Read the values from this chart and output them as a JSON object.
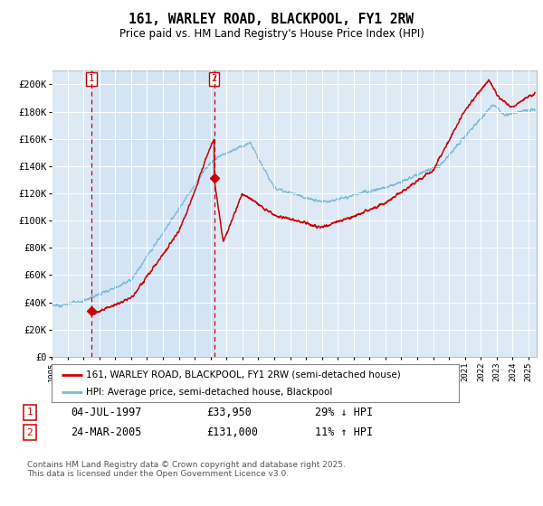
{
  "title": "161, WARLEY ROAD, BLACKPOOL, FY1 2RW",
  "subtitle": "Price paid vs. HM Land Registry's House Price Index (HPI)",
  "ylim": [
    0,
    210000
  ],
  "xlim_start": 1995.0,
  "xlim_end": 2025.5,
  "yticks": [
    0,
    20000,
    40000,
    60000,
    80000,
    100000,
    120000,
    140000,
    160000,
    180000,
    200000
  ],
  "ytick_labels": [
    "£0",
    "£20K",
    "£40K",
    "£60K",
    "£80K",
    "£100K",
    "£120K",
    "£140K",
    "£160K",
    "£180K",
    "£200K"
  ],
  "xtick_years": [
    1995,
    1996,
    1997,
    1998,
    1999,
    2000,
    2001,
    2002,
    2003,
    2004,
    2005,
    2006,
    2007,
    2008,
    2009,
    2010,
    2011,
    2012,
    2013,
    2014,
    2015,
    2016,
    2017,
    2018,
    2019,
    2020,
    2021,
    2022,
    2023,
    2024,
    2025
  ],
  "hpi_color": "#7ab8d9",
  "price_color": "#cc0000",
  "shade_color": "#d0e4f5",
  "sale1_x": 1997.51,
  "sale1_y": 33950,
  "sale2_x": 2005.22,
  "sale2_y": 131000,
  "legend_label1": "161, WARLEY ROAD, BLACKPOOL, FY1 2RW (semi-detached house)",
  "legend_label2": "HPI: Average price, semi-detached house, Blackpool",
  "sale1_date": "04-JUL-1997",
  "sale1_price": "£33,950",
  "sale1_hpi": "29% ↓ HPI",
  "sale2_date": "24-MAR-2005",
  "sale2_price": "£131,000",
  "sale2_hpi": "11% ↑ HPI",
  "footnote": "Contains HM Land Registry data © Crown copyright and database right 2025.\nThis data is licensed under the Open Government Licence v3.0.",
  "bg_color": "#ddeaf5"
}
